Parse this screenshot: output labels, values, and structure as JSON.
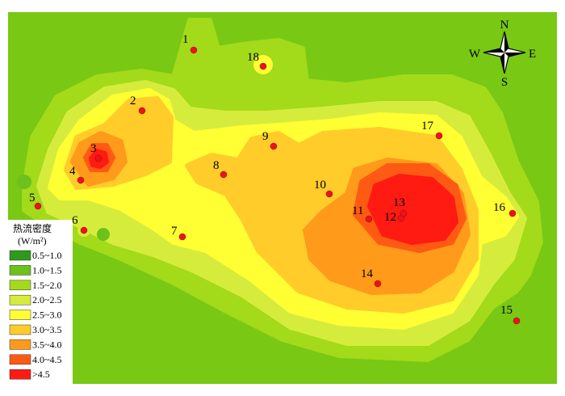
{
  "legend": {
    "title": "热流密度",
    "unit": "(W/m²)",
    "items": [
      {
        "label": "0.5~1.0",
        "color": "#2f9a1a"
      },
      {
        "label": "1.0~1.5",
        "color": "#6cc11c"
      },
      {
        "label": "1.5~2.0",
        "color": "#a3da1a"
      },
      {
        "label": "2.0~2.5",
        "color": "#d6ec3c"
      },
      {
        "label": "2.5~3.0",
        "color": "#ffff33"
      },
      {
        "label": "3.0~3.5",
        "color": "#ffcc2a"
      },
      {
        "label": "3.5~4.0",
        "color": "#ff9a1a"
      },
      {
        "label": "4.0~4.5",
        "color": "#ff5a14"
      },
      {
        "label": ">4.5",
        "color": "#ff1a12"
      }
    ]
  },
  "points": [
    "1",
    "2",
    "3",
    "4",
    "5",
    "6",
    "7",
    "8",
    "9",
    "10",
    "11",
    "12",
    "13",
    "14",
    "15",
    "16",
    "17",
    "18"
  ],
  "compass": {
    "n": "N",
    "e": "E",
    "s": "S",
    "w": "W"
  }
}
